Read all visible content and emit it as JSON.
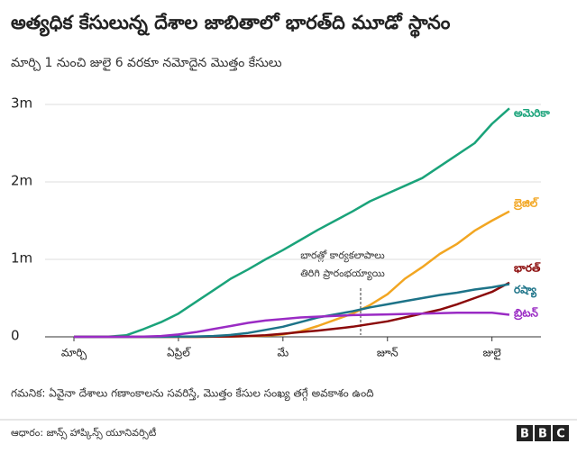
{
  "chart_data": {
    "type": "line",
    "title": "అత్యధిక కేసులున్న దేశాల జాబితాలో భారత్‌ది  మూడో స్థానం",
    "subtitle": "మార్చి 1 నుంచి జులై 6 వరకూ నమోదైన మొత్తం కేసులు",
    "annotation": [
      "భారత్లో కార్యకలాపాలు",
      "తిరిగి ప్రారంభయ్యాయి"
    ],
    "note": "గమనిక: ఏవైనా దేశాలు గణాంకాలను సవరిస్తే, మొత్తం కేసుల సంఖ్య తగ్గే అవకాశం ఉంది",
    "source": "ఆధారం: జాన్స్ హాప్కిన్స్ యూనివర్సిటీ",
    "logo": [
      "B",
      "B",
      "C"
    ],
    "categories": [
      "మార్చి",
      null,
      null,
      null,
      null,
      null,
      "ఏప్రిల్",
      null,
      null,
      null,
      null,
      null,
      "మే",
      null,
      null,
      null,
      null,
      null,
      "జూన్",
      null,
      null,
      null,
      null,
      null,
      "జులై",
      null
    ],
    "ylim": [
      0,
      3000000
    ],
    "yticks": [
      0,
      {
        "value": 1000000,
        "label": "1m"
      },
      {
        "value": 2000000,
        "label": "2m"
      },
      {
        "value": 3000000,
        "label": "3m"
      }
    ],
    "grid": true,
    "series": [
      {
        "name": "అమెరికా",
        "color": "#1aa37a",
        "values": [
          0,
          0,
          2000,
          20000,
          100000,
          190000,
          300000,
          450000,
          600000,
          750000,
          870000,
          1000000,
          1120000,
          1250000,
          1380000,
          1500000,
          1620000,
          1750000,
          1850000,
          1950000,
          2050000,
          2200000,
          2350000,
          2500000,
          2750000,
          2950000
        ]
      },
      {
        "name": "బ్రెజిల్",
        "color": "#f2a622",
        "values": [
          0,
          0,
          0,
          0,
          0,
          0,
          0,
          0,
          1000,
          3000,
          8000,
          15000,
          30000,
          70000,
          140000,
          220000,
          300000,
          410000,
          550000,
          750000,
          900000,
          1070000,
          1200000,
          1370000,
          1500000,
          1620000
        ]
      },
      {
        "name": "భారత్",
        "color": "#8b0a0a",
        "values": [
          0,
          0,
          0,
          0,
          0,
          0,
          0,
          0,
          2000,
          5000,
          10000,
          20000,
          40000,
          60000,
          80000,
          105000,
          130000,
          165000,
          200000,
          250000,
          300000,
          350000,
          420000,
          500000,
          580000,
          700000
        ]
      },
      {
        "name": "రష్యా",
        "color": "#1d7388",
        "values": [
          0,
          0,
          0,
          0,
          0,
          0,
          2000,
          5000,
          10000,
          25000,
          50000,
          90000,
          130000,
          190000,
          250000,
          290000,
          330000,
          380000,
          420000,
          460000,
          500000,
          540000,
          570000,
          610000,
          640000,
          680000
        ]
      },
      {
        "name": "బ్రిటన్",
        "color": "#9a2bc4",
        "values": [
          0,
          0,
          0,
          0,
          2000,
          10000,
          30000,
          60000,
          100000,
          140000,
          180000,
          210000,
          230000,
          250000,
          260000,
          270000,
          280000,
          285000,
          290000,
          295000,
          300000,
          305000,
          310000,
          310000,
          310000,
          285000
        ]
      }
    ]
  }
}
